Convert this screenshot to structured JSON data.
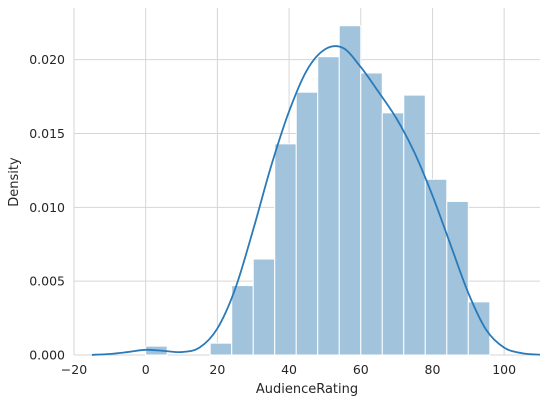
{
  "chart_data": {
    "type": "bar",
    "subtype": "histogram-with-kde",
    "title": "",
    "xlabel": "AudienceRating",
    "ylabel": "Density",
    "xlim": [
      -20,
      110
    ],
    "ylim": [
      0,
      0.0235
    ],
    "grid": true,
    "x_ticks": [
      -20,
      0,
      20,
      40,
      60,
      80,
      100
    ],
    "x_tick_labels": [
      "−20",
      "0",
      "20",
      "40",
      "60",
      "80",
      "100"
    ],
    "y_ticks": [
      0,
      0.005,
      0.01,
      0.015,
      0.02
    ],
    "y_tick_labels": [
      "0.000",
      "0.005",
      "0.010",
      "0.015",
      "0.020"
    ],
    "bar_color": "#a1c3dc",
    "line_color": "#2a7ab9",
    "bins": [
      {
        "x0": 0,
        "x1": 6,
        "density": 0.0006
      },
      {
        "x0": 6,
        "x1": 12,
        "density": 0.0
      },
      {
        "x0": 12,
        "x1": 18,
        "density": 0.0
      },
      {
        "x0": 18,
        "x1": 24,
        "density": 0.0008
      },
      {
        "x0": 24,
        "x1": 30,
        "density": 0.0047
      },
      {
        "x0": 30,
        "x1": 36,
        "density": 0.0065
      },
      {
        "x0": 36,
        "x1": 42,
        "density": 0.0143
      },
      {
        "x0": 42,
        "x1": 48,
        "density": 0.0178
      },
      {
        "x0": 48,
        "x1": 54,
        "density": 0.0202
      },
      {
        "x0": 54,
        "x1": 60,
        "density": 0.0223
      },
      {
        "x0": 60,
        "x1": 66,
        "density": 0.0191
      },
      {
        "x0": 66,
        "x1": 72,
        "density": 0.0164
      },
      {
        "x0": 72,
        "x1": 78,
        "density": 0.0176
      },
      {
        "x0": 78,
        "x1": 84,
        "density": 0.0119
      },
      {
        "x0": 84,
        "x1": 90,
        "density": 0.0104
      },
      {
        "x0": 90,
        "x1": 96,
        "density": 0.0036
      }
    ],
    "kde": {
      "x": [
        -15,
        -10,
        -5,
        0,
        5,
        10,
        15,
        20,
        25,
        30,
        35,
        40,
        45,
        50,
        55,
        60,
        65,
        70,
        75,
        80,
        85,
        90,
        95,
        100,
        105,
        110
      ],
      "y": [
        1e-05,
        7e-05,
        0.0002,
        0.00035,
        0.00028,
        0.0002,
        0.0005,
        0.0018,
        0.0045,
        0.0085,
        0.0128,
        0.0165,
        0.0193,
        0.0207,
        0.0208,
        0.0195,
        0.0178,
        0.016,
        0.0137,
        0.0108,
        0.0075,
        0.0042,
        0.0017,
        0.0005,
        0.00012,
        2e-05
      ]
    }
  }
}
